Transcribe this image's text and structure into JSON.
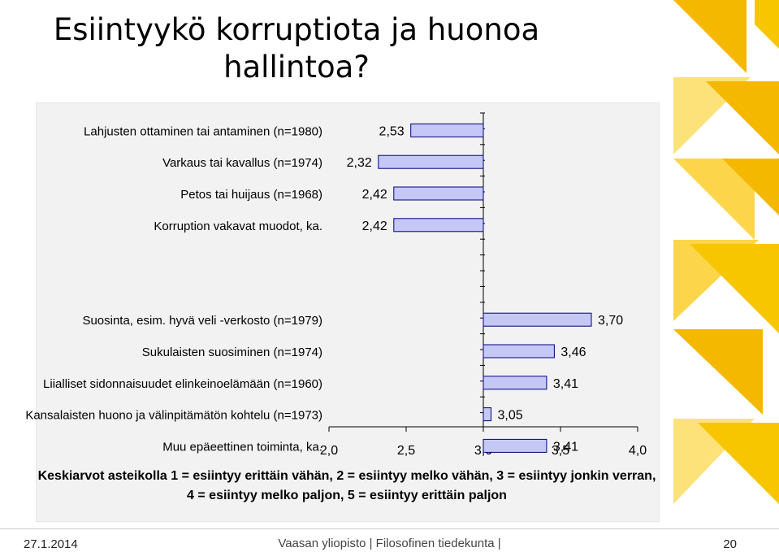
{
  "slide": {
    "title": "Esiintyykö korruptiota ja huonoa hallintoa?",
    "footer_date": "27.1.2014",
    "footer_institution": "Vaasan yliopisto | Filosofinen tiedekunta |",
    "page_number": "20"
  },
  "chart_data": {
    "type": "bar",
    "orientation": "horizontal",
    "xlim": [
      2.0,
      4.0
    ],
    "xticks": [
      "2,0",
      "2,5",
      "3,0",
      "3,5",
      "4,0"
    ],
    "xlabel": "Keskiarvot asteikolla 1 = esiintyy erittäin vähän, 2 = esiintyy melko vähän, 3 = esiintyy jonkin verran, 4 = esiintyy melko paljon, 5 = esiintyy erittäin paljon",
    "bar_color": "#c5c8f5",
    "bar_border": "#000080",
    "groups": [
      {
        "categories": [
          "Lahjusten ottaminen tai antaminen (n=1980)",
          "Varkaus tai kavallus (n=1974)",
          "Petos tai huijaus (n=1968)",
          "Korruption vakavat muodot, ka."
        ],
        "values": [
          2.53,
          2.32,
          2.42,
          2.42
        ],
        "labels": [
          "2,53",
          "2,32",
          "2,42",
          "2,42"
        ]
      },
      {
        "categories": [
          "Suosinta, esim. hyvä veli -verkosto (n=1979)",
          "Sukulaisten suosiminen (n=1974)",
          "Liialliset sidonnaisuudet elinkeinoelämään (n=1960)",
          "Kansalaisten huono ja välinpitämätön kohtelu (n=1973)",
          "Muu epäeettinen toiminta, ka."
        ],
        "values": [
          3.7,
          3.46,
          3.41,
          3.05,
          3.41
        ],
        "labels": [
          "3,70",
          "3,46",
          "3,41",
          "3,05",
          "3,41"
        ]
      }
    ]
  }
}
